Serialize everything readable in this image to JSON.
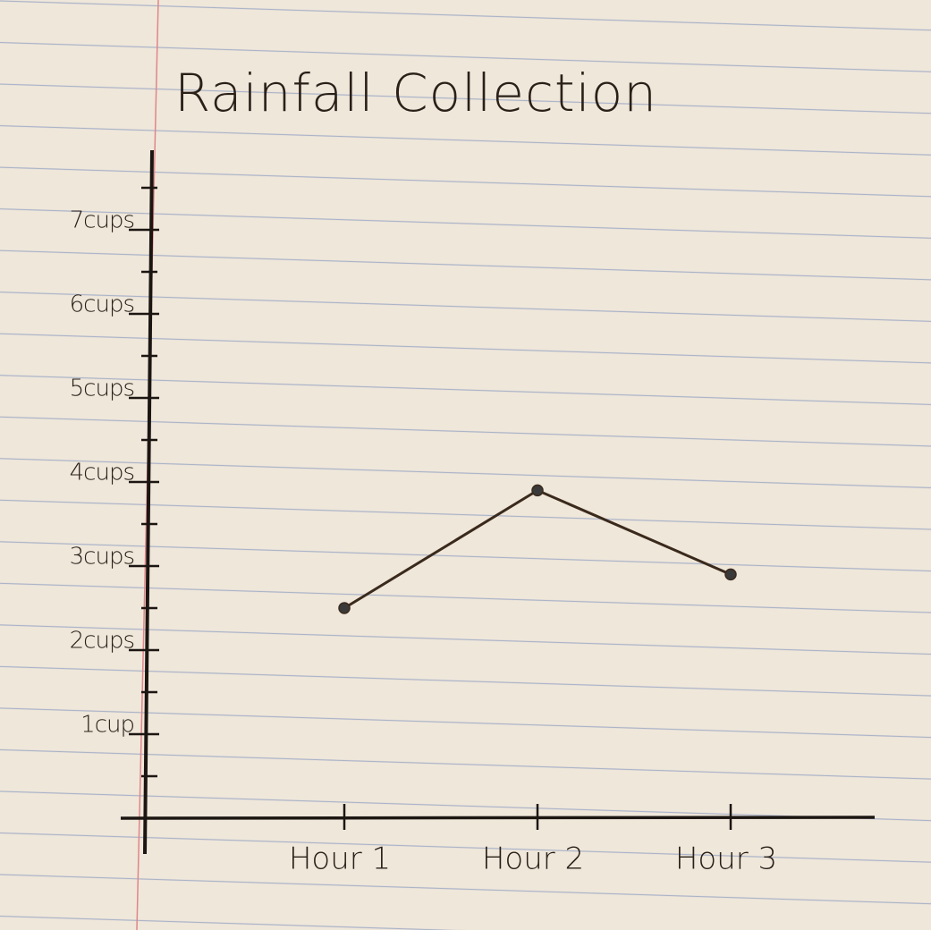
{
  "chart_data": {
    "type": "line",
    "title": "Rainfall Collection",
    "categories": [
      "Hour 1",
      "Hour 2",
      "Hour 3"
    ],
    "values": [
      2.5,
      3.9,
      2.9
    ],
    "color": "#3a2a1c",
    "ylim": [
      0,
      8
    ],
    "yticks": [
      {
        "value": 1,
        "label": "1cup"
      },
      {
        "value": 2,
        "label": "2cups"
      },
      {
        "value": 3,
        "label": "3cups"
      },
      {
        "value": 4,
        "label": "4cups"
      },
      {
        "value": 5,
        "label": "5cups"
      },
      {
        "value": 6,
        "label": "6cups"
      },
      {
        "value": 7,
        "label": "7cups"
      }
    ],
    "minor_yticks": [
      0.5,
      1.5,
      2.5,
      3.5,
      4.5,
      5.5,
      6.5,
      7.5
    ]
  }
}
